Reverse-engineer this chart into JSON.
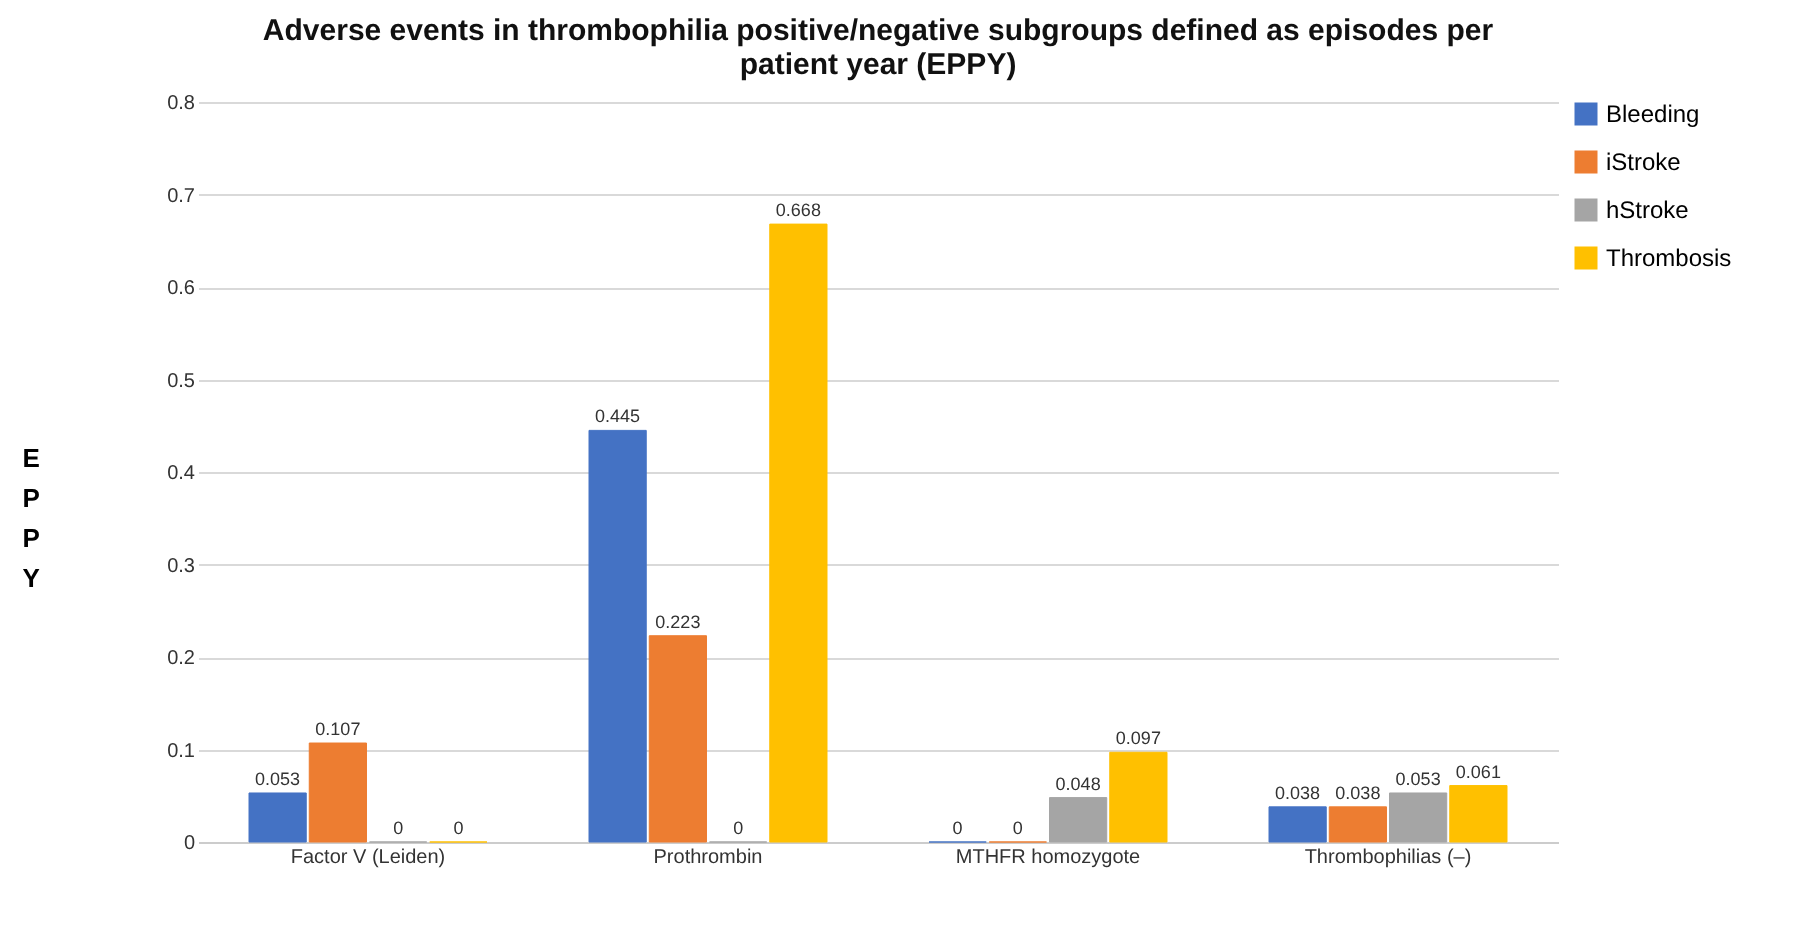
{
  "chart_data": {
    "type": "bar",
    "title": "Adverse events in thrombophilia positive/negative subgroups defined as episodes per patient year (EPPY)",
    "ylabel": "EPPY",
    "categories": [
      "Factor V (Leiden)",
      "Prothrombin",
      "MTHFR homozygote",
      "Thrombophilias (–)"
    ],
    "series": [
      {
        "name": "Bleeding",
        "color": "#4472c4",
        "values": [
          0.053,
          0.445,
          0,
          0.038
        ]
      },
      {
        "name": "iStroke",
        "color": "#ed7d31",
        "values": [
          0.107,
          0.223,
          0,
          0.038
        ]
      },
      {
        "name": "hStroke",
        "color": "#a5a5a5",
        "values": [
          0,
          0,
          0.048,
          0.053
        ]
      },
      {
        "name": "Thrombosis",
        "color": "#ffc000",
        "values": [
          0,
          0.668,
          0.097,
          0.061
        ]
      }
    ],
    "ylim": [
      0,
      0.8
    ],
    "yticks": [
      0,
      0.1,
      0.2,
      0.3,
      0.4,
      0.5,
      0.6,
      0.7,
      0.8
    ],
    "grid": "y",
    "legend": "right",
    "data_labels": true
  }
}
